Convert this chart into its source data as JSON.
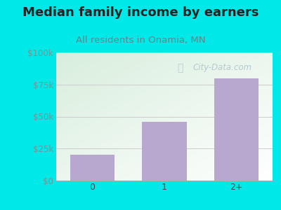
{
  "title": "Median family income by earners",
  "subtitle": "All residents in Onamia, MN",
  "categories": [
    "0",
    "1",
    "2+"
  ],
  "values": [
    20000,
    46000,
    80000
  ],
  "bar_color": "#b8a8d0",
  "background_outer": "#00e8e8",
  "ylim": [
    0,
    100000
  ],
  "yticks": [
    0,
    25000,
    50000,
    75000,
    100000
  ],
  "ytick_labels": [
    "$0",
    "$25k",
    "$50k",
    "$75k",
    "$100k"
  ],
  "title_fontsize": 13,
  "subtitle_fontsize": 9.5,
  "subtitle_color": "#5a8a8a",
  "title_color": "#222222",
  "watermark": "City-Data.com",
  "watermark_color": "#a8bec8",
  "plot_bg_color_top_left": "#d8eedd",
  "plot_bg_color_bottom_right": "#ffffff",
  "grid_color": "#cccccc",
  "tick_label_color": "#6a9a9a"
}
